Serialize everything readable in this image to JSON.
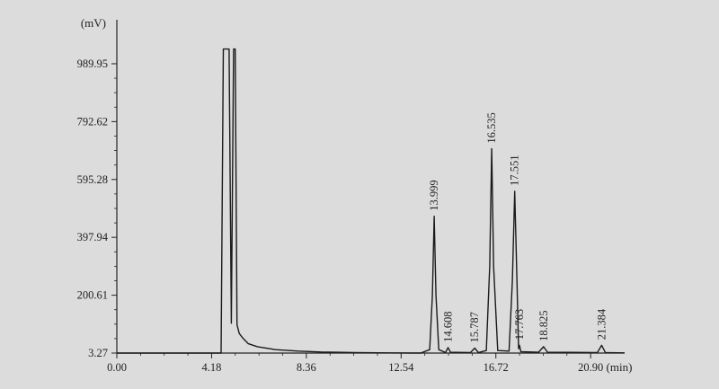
{
  "chart_data": {
    "type": "line",
    "y_unit": "(mV)",
    "x_unit": "(min)",
    "x_ticks": [
      "0.00",
      "4.18",
      "8.36",
      "12.54",
      "16.72",
      "20.90"
    ],
    "y_ticks": [
      "3.27",
      "200.61",
      "397.94",
      "595.28",
      "792.62",
      "989.95"
    ],
    "xlim": [
      0,
      22.4
    ],
    "ylim": [
      3.27,
      1140
    ],
    "grid": false,
    "series": [
      {
        "x": [
          0.0,
          4.6,
          4.7,
          4.75,
          4.85,
          4.95,
          5.05,
          5.15,
          5.22,
          5.3,
          5.4,
          5.55,
          5.8,
          6.2,
          7.0,
          8.0,
          9.0,
          10.5,
          12.0,
          13.4,
          13.8,
          13.92,
          13.999,
          14.08,
          14.2,
          14.5,
          14.608,
          14.72,
          15.6,
          15.787,
          15.95,
          16.3,
          16.45,
          16.535,
          16.62,
          16.8,
          17.3,
          17.45,
          17.551,
          17.65,
          17.72,
          17.763,
          17.82,
          18.6,
          18.825,
          19.0,
          21.2,
          21.384,
          21.55,
          22.4
        ],
        "y": [
          3.27,
          3.27,
          1040,
          1040,
          1040,
          1040,
          105,
          1040,
          1040,
          100,
          70,
          55,
          35,
          25,
          15,
          10,
          7,
          5,
          4,
          3.27,
          15,
          200,
          470,
          200,
          15,
          5,
          22,
          6,
          5,
          20,
          5,
          12,
          300,
          700,
          300,
          12,
          10,
          250,
          555,
          250,
          18,
          30,
          8,
          6,
          25,
          6,
          5,
          30,
          5,
          4
        ]
      }
    ],
    "peak_labels": [
      {
        "x": 13.999,
        "y": 470,
        "text": "13.999"
      },
      {
        "x": 14.608,
        "y": 22,
        "text": "14.608"
      },
      {
        "x": 15.787,
        "y": 20,
        "text": "15.787"
      },
      {
        "x": 16.535,
        "y": 700,
        "text": "16.535"
      },
      {
        "x": 17.551,
        "y": 555,
        "text": "17.551"
      },
      {
        "x": 17.763,
        "y": 30,
        "text": "17.763"
      },
      {
        "x": 18.825,
        "y": 25,
        "text": "18.825"
      },
      {
        "x": 21.384,
        "y": 30,
        "text": "21.384"
      }
    ]
  }
}
